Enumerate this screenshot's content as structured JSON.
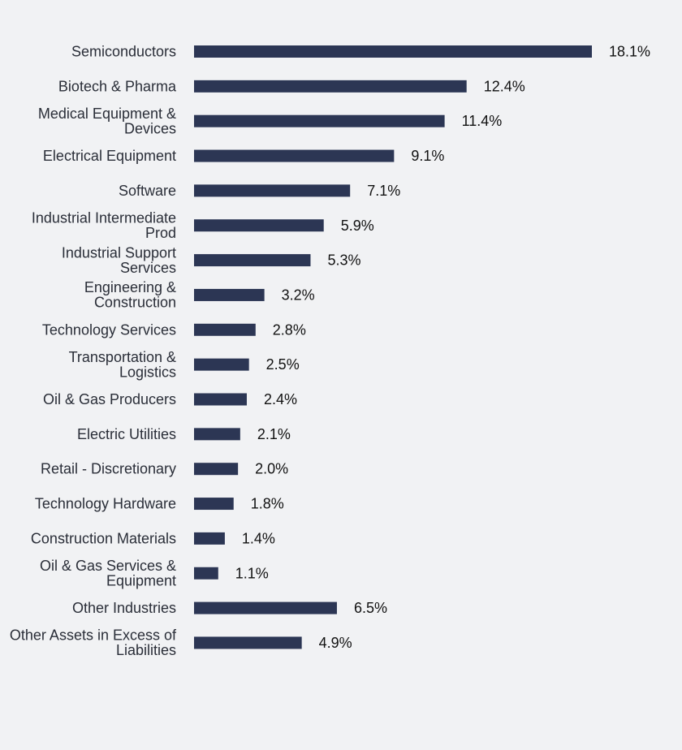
{
  "colors": {
    "background": "#f1f2f4",
    "bar": "#2c3654",
    "category_text": "#2a2e38",
    "value_text": "#111111"
  },
  "chart_data": {
    "type": "bar",
    "orientation": "horizontal",
    "title": "",
    "xlabel": "",
    "ylabel": "",
    "xlim": [
      0,
      18.1
    ],
    "grid": false,
    "legend": "none",
    "value_suffix": "%",
    "categories": [
      [
        "Semiconductors"
      ],
      [
        "Biotech & Pharma"
      ],
      [
        "Medical Equipment &",
        "Devices"
      ],
      [
        "Electrical Equipment"
      ],
      [
        "Software"
      ],
      [
        "Industrial Intermediate",
        "Prod"
      ],
      [
        "Industrial Support",
        "Services"
      ],
      [
        "Engineering &",
        "Construction"
      ],
      [
        "Technology Services"
      ],
      [
        "Transportation &",
        "Logistics"
      ],
      [
        "Oil & Gas Producers"
      ],
      [
        "Electric Utilities"
      ],
      [
        "Retail - Discretionary"
      ],
      [
        "Technology Hardware"
      ],
      [
        "Construction Materials"
      ],
      [
        "Oil & Gas Services &",
        "Equipment"
      ],
      [
        "Other Industries"
      ],
      [
        "Other Assets in Excess of",
        "Liabilities"
      ]
    ],
    "values": [
      18.1,
      12.4,
      11.4,
      9.1,
      7.1,
      5.9,
      5.3,
      3.2,
      2.8,
      2.5,
      2.4,
      2.1,
      2.0,
      1.8,
      1.4,
      1.1,
      6.5,
      4.9
    ],
    "value_labels": [
      "18.1%",
      "12.4%",
      "11.4%",
      "9.1%",
      "7.1%",
      "5.9%",
      "5.3%",
      "3.2%",
      "2.8%",
      "2.5%",
      "2.4%",
      "2.1%",
      "2.0%",
      "1.8%",
      "1.4%",
      "1.1%",
      "6.5%",
      "4.9%"
    ]
  }
}
